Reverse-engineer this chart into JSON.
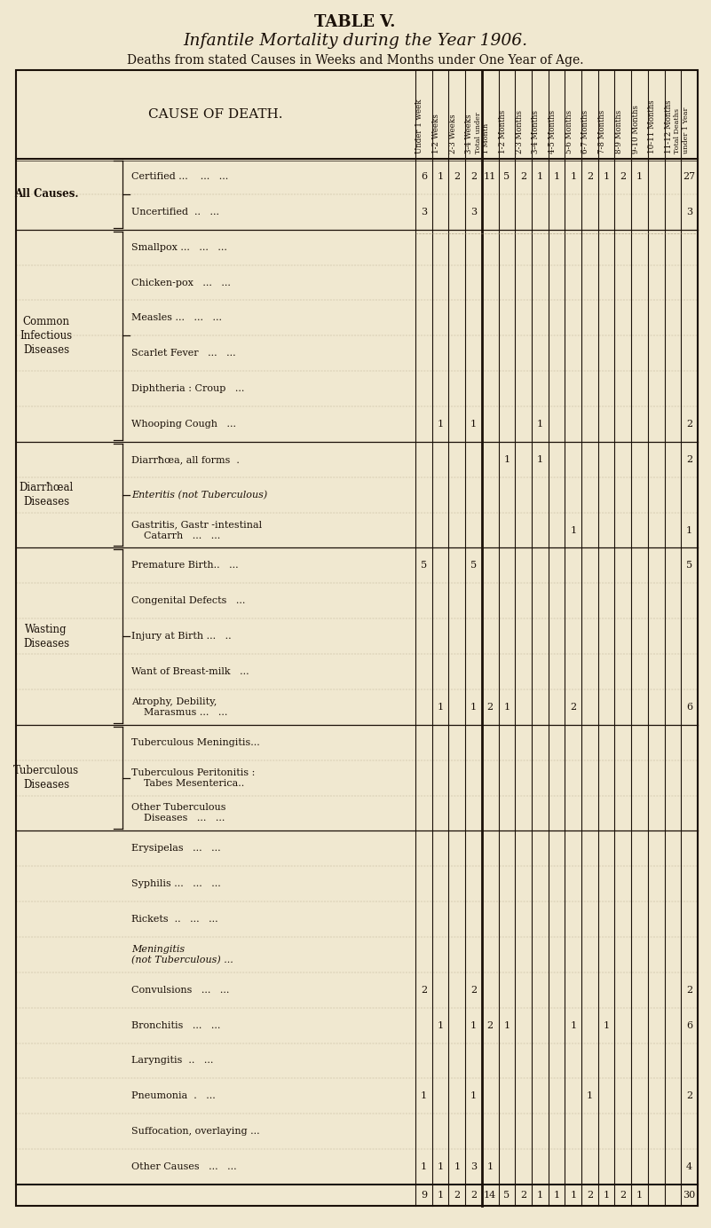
{
  "title1": "TABLE V.",
  "title2": "Infantile Mortality during the Year 1906.",
  "title3": "Deaths from stated Causes in Weeks and Months under One Year of Age.",
  "bg_color": "#f0e8d0",
  "col_headers": [
    "Under 1 week",
    "1-2 Weeks",
    "2-3 Weeks",
    "3-4 Weeks",
    "Total under\n1 Month",
    "1-2 Months",
    "2-3 Months",
    "3-4 Months",
    "4-5 Months",
    "5-6 Months",
    "6-7 Months",
    "7-8 Months",
    "8-9 Months",
    "9-10 Months",
    "10-11 Months",
    "11-12 Months",
    "Total Deaths\nunder 1 Year"
  ],
  "groups": [
    {
      "label": "All Causes.",
      "label_style": "bold",
      "brace": true,
      "rows": [
        {
          "cause": "Certified ...    ...   ...",
          "italic": false,
          "data": [
            6,
            1,
            2,
            2,
            11,
            5,
            2,
            1,
            1,
            1,
            2,
            1,
            2,
            1,
            "",
            "",
            27
          ]
        },
        {
          "cause": "Uncertified  ..   ...",
          "italic": false,
          "data": [
            3,
            "",
            "",
            3,
            "",
            "",
            "",
            "",
            "",
            "",
            "",
            "",
            "",
            "",
            "",
            "",
            3
          ]
        }
      ]
    },
    {
      "label": "Common\nInfectious\nDiseases",
      "label_style": "normal",
      "brace": true,
      "rows": [
        {
          "cause": "Smallpox ...   ...   ...",
          "italic": false,
          "data": [
            "",
            "",
            "",
            "",
            "",
            "",
            "",
            "",
            "",
            "",
            "",
            "",
            "",
            "",
            "",
            "",
            ""
          ]
        },
        {
          "cause": "Chicken-pox   ...   ...",
          "italic": false,
          "data": [
            "",
            "",
            "",
            "",
            "",
            "",
            "",
            "",
            "",
            "",
            "",
            "",
            "",
            "",
            "",
            "",
            ""
          ]
        },
        {
          "cause": "Measles ...   ...   ...",
          "italic": false,
          "data": [
            "",
            "",
            "",
            "",
            "",
            "",
            "",
            "",
            "",
            "",
            "",
            "",
            "",
            "",
            "",
            "",
            ""
          ]
        },
        {
          "cause": "Scarlet Fever   ...   ...",
          "italic": false,
          "data": [
            "",
            "",
            "",
            "",
            "",
            "",
            "",
            "",
            "",
            "",
            "",
            "",
            "",
            "",
            "",
            "",
            ""
          ]
        },
        {
          "cause": "Diphtheria : Croup   ...",
          "italic": false,
          "data": [
            "",
            "",
            "",
            "",
            "",
            "",
            "",
            "",
            "",
            "",
            "",
            "",
            "",
            "",
            "",
            "",
            ""
          ]
        },
        {
          "cause": "Whooping Cough   ...",
          "italic": false,
          "data": [
            "",
            1,
            "",
            1,
            "",
            "",
            "",
            1,
            "",
            "",
            "",
            "",
            "",
            "",
            "",
            "",
            2
          ]
        }
      ]
    },
    {
      "label": "Diarrħœal\nDiseases",
      "label_style": "normal",
      "brace": true,
      "rows": [
        {
          "cause": "Diarrħœa, all forms  .",
          "italic": false,
          "data": [
            "",
            "",
            "",
            "",
            "",
            1,
            "",
            1,
            "",
            "",
            "",
            "",
            "",
            "",
            "",
            "",
            2
          ]
        },
        {
          "cause": "Enteritis (not Tuberculous)",
          "italic": true,
          "data": [
            "",
            "",
            "",
            "",
            "",
            "",
            "",
            "",
            "",
            "",
            "",
            "",
            "",
            "",
            "",
            "",
            ""
          ]
        },
        {
          "cause": "Gastritis, Gastr -intestinal\n    Catarrh   ...   ...",
          "italic": false,
          "data": [
            "",
            "",
            "",
            "",
            "",
            "",
            "",
            "",
            "",
            1,
            "",
            "",
            "",
            "",
            "",
            "",
            1
          ]
        }
      ]
    },
    {
      "label": "Wasting\nDiseases",
      "label_style": "normal",
      "brace": true,
      "rows": [
        {
          "cause": "Premature Birth..   ...",
          "italic": false,
          "data": [
            5,
            "",
            "",
            5,
            "",
            "",
            "",
            "",
            "",
            "",
            "",
            "",
            "",
            "",
            "",
            "",
            5
          ]
        },
        {
          "cause": "Congenital Defects   ...",
          "italic": false,
          "data": [
            "",
            "",
            "",
            "",
            "",
            "",
            "",
            "",
            "",
            "",
            "",
            "",
            "",
            "",
            "",
            "",
            ""
          ]
        },
        {
          "cause": "Injury at Birth ...   ..",
          "italic": false,
          "data": [
            "",
            "",
            "",
            "",
            "",
            "",
            "",
            "",
            "",
            "",
            "",
            "",
            "",
            "",
            "",
            "",
            ""
          ]
        },
        {
          "cause": "Want of Breast-milk   ...",
          "italic": false,
          "data": [
            "",
            "",
            "",
            "",
            "",
            "",
            "",
            "",
            "",
            "",
            "",
            "",
            "",
            "",
            "",
            "",
            ""
          ]
        },
        {
          "cause": "Atrophy, Debility,\n    Marasmus ...   ...",
          "italic": false,
          "data": [
            "",
            1,
            "",
            1,
            2,
            1,
            "",
            "",
            "",
            2,
            "",
            "",
            "",
            "",
            "",
            "",
            6
          ]
        }
      ]
    },
    {
      "label": "Tuberculous\nDiseases",
      "label_style": "normal",
      "brace": true,
      "rows": [
        {
          "cause": "Tuberculous Meningitis...",
          "italic": false,
          "data": [
            "",
            "",
            "",
            "",
            "",
            "",
            "",
            "",
            "",
            "",
            "",
            "",
            "",
            "",
            "",
            "",
            ""
          ]
        },
        {
          "cause": "Tuberculous Peritonitis :\n    Tabes Mesenterica..",
          "italic": false,
          "data": [
            "",
            "",
            "",
            "",
            "",
            "",
            "",
            "",
            "",
            "",
            "",
            "",
            "",
            "",
            "",
            "",
            ""
          ]
        },
        {
          "cause": "Other Tuberculous\n    Diseases   ...   ...",
          "italic": false,
          "data": [
            "",
            "",
            "",
            "",
            "",
            "",
            "",
            "",
            "",
            "",
            "",
            "",
            "",
            "",
            "",
            "",
            ""
          ]
        }
      ]
    },
    {
      "label": "",
      "label_style": "normal",
      "brace": false,
      "rows": [
        {
          "cause": "Erysipelas   ...   ...",
          "italic": false,
          "data": [
            "",
            "",
            "",
            "",
            "",
            "",
            "",
            "",
            "",
            "",
            "",
            "",
            "",
            "",
            "",
            "",
            ""
          ]
        },
        {
          "cause": "Syphilis ...   ...   ...",
          "italic": false,
          "data": [
            "",
            "",
            "",
            "",
            "",
            "",
            "",
            "",
            "",
            "",
            "",
            "",
            "",
            "",
            "",
            "",
            ""
          ]
        },
        {
          "cause": "Rickets  ..   ...   ...",
          "italic": false,
          "data": [
            "",
            "",
            "",
            "",
            "",
            "",
            "",
            "",
            "",
            "",
            "",
            "",
            "",
            "",
            "",
            "",
            ""
          ]
        },
        {
          "cause": "Meningitis\n(not Tuberculous) ...",
          "italic": true,
          "data": [
            "",
            "",
            "",
            "",
            "",
            "",
            "",
            "",
            "",
            "",
            "",
            "",
            "",
            "",
            "",
            "",
            ""
          ]
        },
        {
          "cause": "Convulsions   ...   ...",
          "italic": false,
          "data": [
            2,
            "",
            "",
            2,
            "",
            "",
            "",
            "",
            "",
            "",
            "",
            "",
            "",
            "",
            "",
            "",
            2
          ]
        },
        {
          "cause": "Bronchitis   ...   ...",
          "italic": false,
          "data": [
            "",
            1,
            "",
            1,
            2,
            1,
            "",
            "",
            "",
            1,
            "",
            1,
            "",
            "",
            "",
            "",
            6
          ]
        },
        {
          "cause": "Laryngitis  ..   ...",
          "italic": false,
          "data": [
            "",
            "",
            "",
            "",
            "",
            "",
            "",
            "",
            "",
            "",
            "",
            "",
            "",
            "",
            "",
            "",
            ""
          ]
        },
        {
          "cause": "Pneumonia  .   ...",
          "italic": false,
          "data": [
            1,
            "",
            "",
            1,
            "",
            "",
            "",
            "",
            "",
            "",
            1,
            "",
            "",
            "",
            "",
            "",
            2
          ]
        },
        {
          "cause": "Suffocation, overlaying ...",
          "italic": false,
          "data": [
            "",
            "",
            "",
            "",
            "",
            "",
            "",
            "",
            "",
            "",
            "",
            "",
            "",
            "",
            "",
            "",
            ""
          ]
        },
        {
          "cause": "Other Causes   ...   ...",
          "italic": false,
          "data": [
            1,
            1,
            1,
            3,
            1,
            "",
            "",
            "",
            "",
            "",
            "",
            "",
            "",
            "",
            "",
            "",
            4
          ]
        }
      ]
    }
  ],
  "totals_row": [
    9,
    1,
    2,
    2,
    14,
    5,
    2,
    1,
    1,
    1,
    2,
    1,
    2,
    1,
    "",
    "",
    30
  ]
}
